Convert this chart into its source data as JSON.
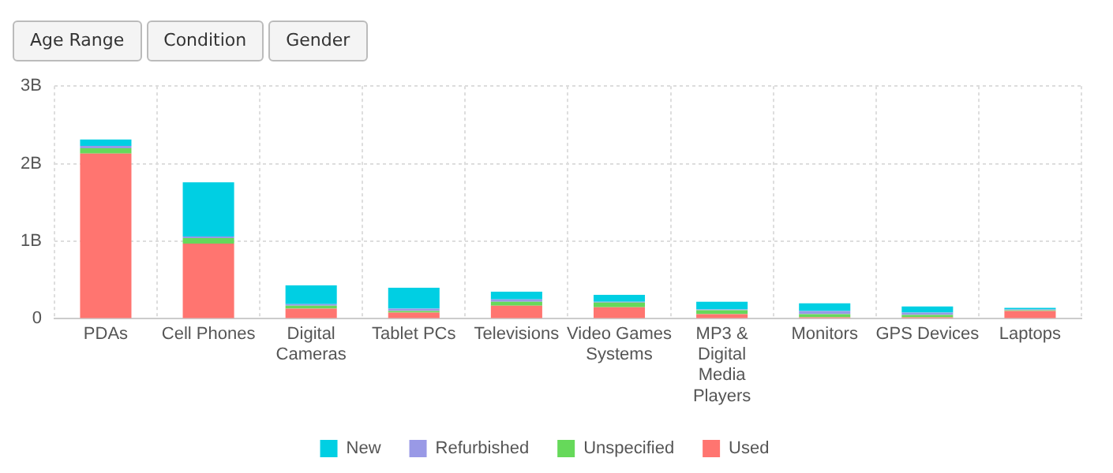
{
  "chart_data": {
    "type": "bar",
    "stacked": true,
    "categories": [
      "PDAs",
      "Cell Phones",
      "Digital Cameras",
      "Tablet PCs",
      "Televisions",
      "Video Games Systems",
      "MP3 & Digital Media Players",
      "Monitors",
      "GPS Devices",
      "Laptops"
    ],
    "series": [
      {
        "name": "Used",
        "color": "#ff7570",
        "values": [
          2.13,
          0.97,
          0.13,
          0.08,
          0.17,
          0.15,
          0.06,
          0.02,
          0.02,
          0.1
        ]
      },
      {
        "name": "Unspecified",
        "color": "#66d95a",
        "values": [
          0.07,
          0.07,
          0.04,
          0.02,
          0.05,
          0.06,
          0.05,
          0.04,
          0.03,
          0.01
        ]
      },
      {
        "name": "Refurbished",
        "color": "#9999e6",
        "values": [
          0.03,
          0.02,
          0.02,
          0.03,
          0.03,
          0.01,
          0.01,
          0.04,
          0.03,
          0.01
        ]
      },
      {
        "name": "New",
        "color": "#00cfe3",
        "values": [
          0.08,
          0.7,
          0.24,
          0.27,
          0.1,
          0.09,
          0.1,
          0.1,
          0.08,
          0.02
        ]
      }
    ],
    "ylim": [
      0,
      3
    ],
    "yticks": [
      0,
      {
        "value": 1,
        "label": "1B"
      },
      {
        "value": 2,
        "label": "2B"
      },
      {
        "value": 3,
        "label": "3B"
      }
    ],
    "grid": true,
    "legend": "bottom",
    "annotations": [
      "Age Range",
      "Condition",
      "Gender"
    ]
  }
}
